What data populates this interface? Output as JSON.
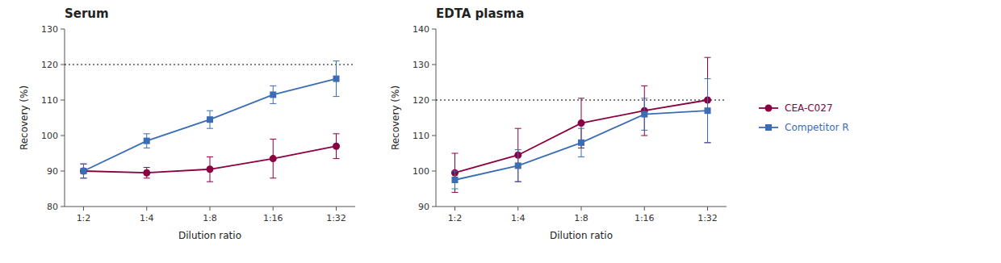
{
  "chart_data": [
    {
      "type": "line",
      "title": "Serum",
      "xlabel": "Dilution ratio",
      "ylabel": "Recovery (%)",
      "categories": [
        "1:2",
        "1:4",
        "1:8",
        "1:16",
        "1:32"
      ],
      "series": [
        {
          "color": "#8B0040",
          "marker": "circle",
          "values": [
            90.0,
            89.5,
            90.5,
            93.5,
            97.0
          ],
          "errors": [
            2.0,
            1.5,
            3.5,
            5.5,
            3.5
          ]
        },
        {
          "color": "#3A6DB5",
          "marker": "square",
          "values": [
            90.0,
            98.5,
            104.5,
            111.5,
            116.0
          ],
          "errors": [
            2.0,
            2.0,
            2.5,
            2.5,
            5.0
          ]
        }
      ],
      "ylim": [
        80,
        130
      ],
      "yticks": [
        80,
        90,
        100,
        110,
        120,
        130
      ],
      "reference_line": 120
    },
    {
      "type": "line",
      "title": "EDTA plasma",
      "xlabel": "Dilution ratio",
      "ylabel": "Recovery (%)",
      "categories": [
        "1:2",
        "1:4",
        "1:8",
        "1:16",
        "1:32"
      ],
      "series": [
        {
          "name": "CEA-C027",
          "color": "#8B0040",
          "marker": "circle",
          "values": [
            99.5,
            104.5,
            113.5,
            117.0,
            120.0
          ],
          "errors": [
            5.5,
            7.5,
            7.0,
            7.0,
            12.0
          ]
        },
        {
          "name": "Competitor R",
          "color": "#3A6DB5",
          "marker": "square",
          "values": [
            97.5,
            101.5,
            108.0,
            116.0,
            117.0
          ],
          "errors": [
            2.5,
            4.5,
            4.0,
            4.5,
            9.0
          ]
        }
      ],
      "ylim": [
        90,
        140
      ],
      "yticks": [
        90,
        100,
        110,
        120,
        130,
        140
      ],
      "reference_line": 120,
      "legend": "right"
    }
  ]
}
